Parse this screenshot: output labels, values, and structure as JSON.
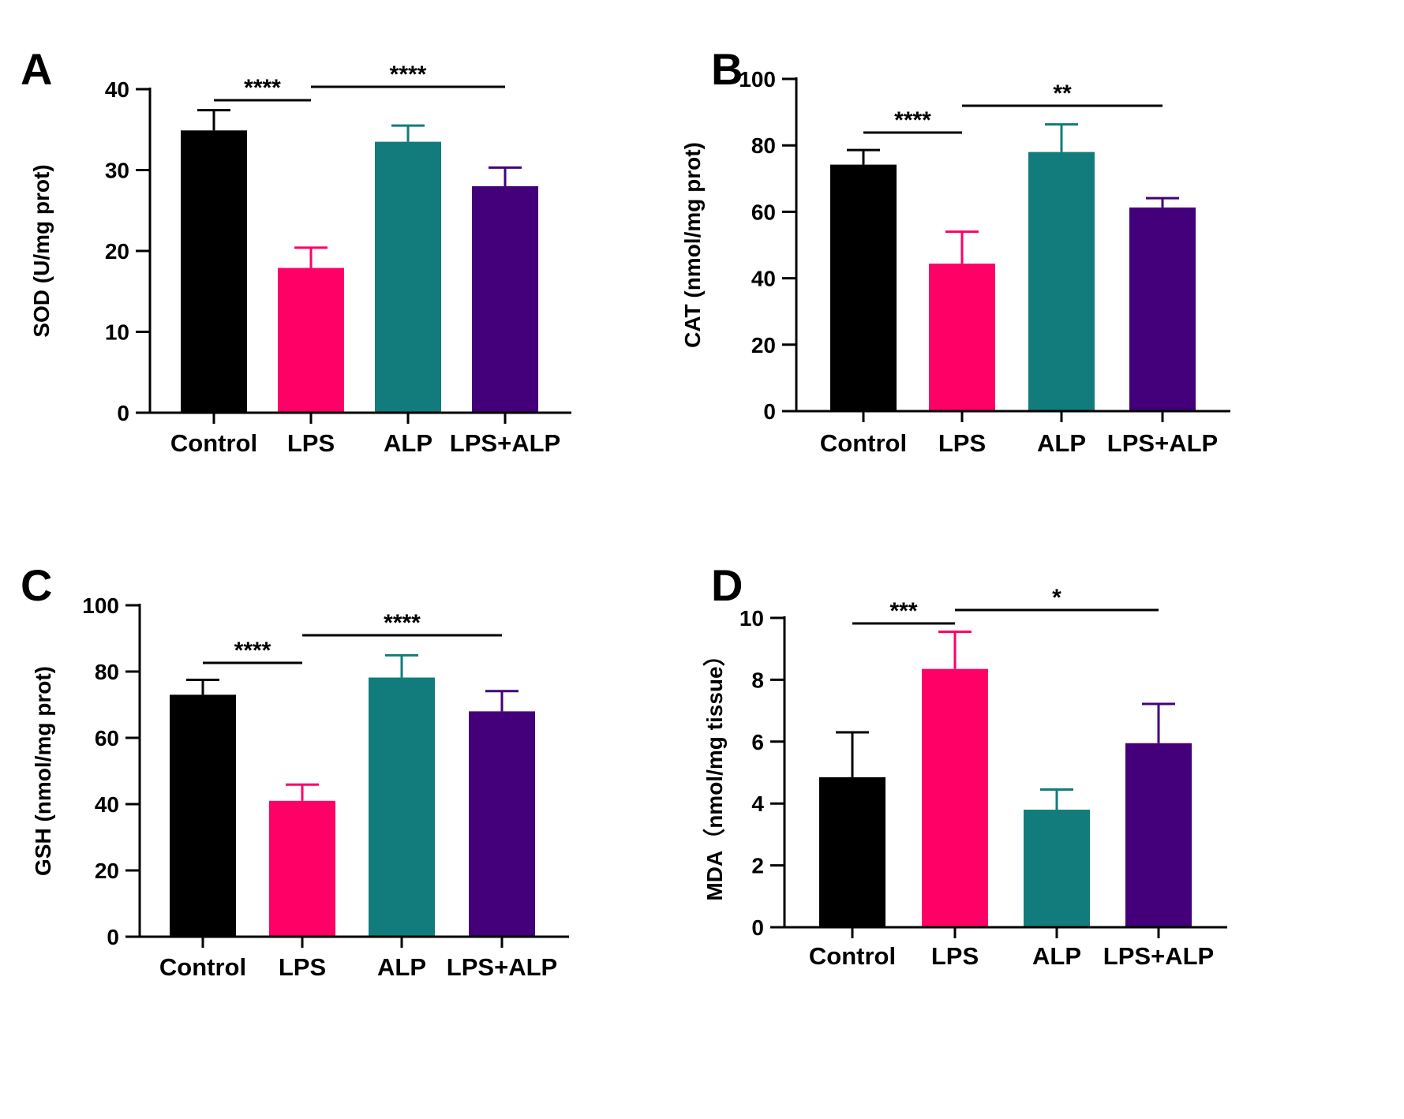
{
  "figure": {
    "categories": [
      "Control",
      "LPS",
      "ALP",
      "LPS+ALP"
    ],
    "colors": [
      "#000000",
      "#ff0066",
      "#127c7c",
      "#43007a"
    ]
  },
  "chart_data": [
    {
      "panel": "A",
      "type": "bar",
      "categories": [
        "Control",
        "LPS",
        "ALP",
        "LPS+ALP"
      ],
      "values": [
        34.9,
        17.9,
        33.5,
        28.0
      ],
      "errors": [
        2.5,
        2.5,
        2.0,
        2.3
      ],
      "ylabel": "SOD (U/mg prot)",
      "xlabel": "",
      "ylim": [
        0,
        40
      ],
      "yticks": [
        0,
        10,
        20,
        30,
        40
      ],
      "significance": [
        {
          "from": 0,
          "to": 1,
          "label": "****"
        },
        {
          "from": 1,
          "to": 3,
          "label": "****"
        }
      ]
    },
    {
      "panel": "B",
      "type": "bar",
      "categories": [
        "Control",
        "LPS",
        "ALP",
        "LPS+ALP"
      ],
      "values": [
        74.2,
        44.4,
        78.0,
        61.3
      ],
      "errors": [
        4.4,
        9.6,
        8.3,
        2.8
      ],
      "ylabel": "CAT (nmol/mg prot)",
      "xlabel": "",
      "ylim": [
        0,
        100
      ],
      "yticks": [
        0,
        20,
        40,
        60,
        80,
        100
      ],
      "significance": [
        {
          "from": 0,
          "to": 1,
          "label": "****"
        },
        {
          "from": 1,
          "to": 3,
          "label": "**"
        }
      ]
    },
    {
      "panel": "C",
      "type": "bar",
      "categories": [
        "Control",
        "LPS",
        "ALP",
        "LPS+ALP"
      ],
      "values": [
        73.0,
        41.0,
        78.2,
        68.0
      ],
      "errors": [
        4.5,
        4.9,
        6.7,
        6.1
      ],
      "ylabel": "GSH (nmol/mg prot)",
      "xlabel": "",
      "ylim": [
        0,
        100
      ],
      "yticks": [
        0,
        20,
        40,
        60,
        80,
        100
      ],
      "significance": [
        {
          "from": 0,
          "to": 1,
          "label": "****"
        },
        {
          "from": 1,
          "to": 3,
          "label": "****"
        }
      ]
    },
    {
      "panel": "D",
      "type": "bar",
      "categories": [
        "Control",
        "LPS",
        "ALP",
        "LPS+ALP"
      ],
      "values": [
        4.85,
        8.35,
        3.8,
        5.95
      ],
      "errors": [
        1.45,
        1.2,
        0.65,
        1.27
      ],
      "ylabel": "MDA（nmol/mg tissue）",
      "xlabel": "",
      "ylim": [
        0,
        10
      ],
      "yticks": [
        0,
        2,
        4,
        6,
        8,
        10
      ],
      "significance": [
        {
          "from": 0,
          "to": 1,
          "label": "***"
        },
        {
          "from": 1,
          "to": 3,
          "label": "*"
        }
      ]
    }
  ]
}
